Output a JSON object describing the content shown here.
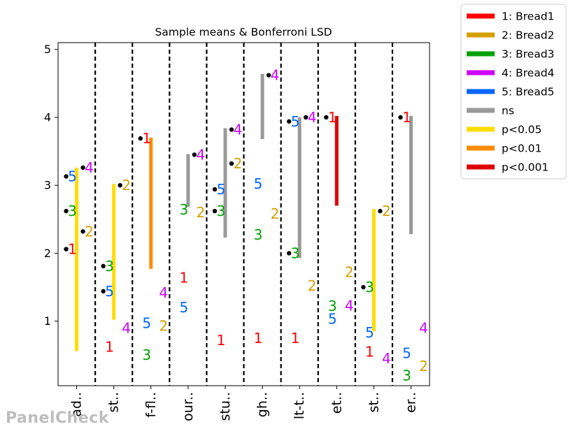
{
  "watermark": "PanelCheck",
  "chart_data": {
    "type": "scatter",
    "title": "Sample means & Bonferroni LSD",
    "ylim": [
      0.05,
      5.1
    ],
    "yticks": [
      "1",
      "2",
      "3",
      "4",
      "5"
    ],
    "categories": [
      "ad..",
      "st..",
      "f-fl..",
      "our..",
      "stu..",
      "gh..",
      "lt-t..",
      "et..",
      "st..",
      "er.."
    ],
    "grid": false,
    "legend_position": "outside-top-right",
    "colors": {
      "1": "#ff0000",
      "2": "#d4a000",
      "3": "#00a000",
      "4": "#cc00ff",
      "5": "#0066ff",
      "ns": "#999999",
      "p<0.05": "#ffdd00",
      "p<0.01": "#ff8c00",
      "p<0.001": "#dd0000"
    },
    "legend": [
      {
        "key": "1",
        "label": "1: Bread1"
      },
      {
        "key": "2",
        "label": "2: Bread2"
      },
      {
        "key": "3",
        "label": "3: Bread3"
      },
      {
        "key": "4",
        "label": "4: Bread4"
      },
      {
        "key": "5",
        "label": "5: Bread5"
      },
      {
        "key": "ns",
        "label": "ns"
      },
      {
        "key": "p<0.05",
        "label": "p<0.05"
      },
      {
        "key": "p<0.01",
        "label": "p<0.01"
      },
      {
        "key": "p<0.001",
        "label": "p<0.001"
      }
    ],
    "groups": [
      {
        "means": {
          "1": 2.06,
          "2": 2.32,
          "3": 2.62,
          "4": 3.26,
          "5": 3.13
        },
        "dots": [
          "1",
          "2",
          "3",
          "4",
          "5"
        ],
        "bar": {
          "sig": "p<0.05",
          "y1": 0.56,
          "y2": 3.26
        }
      },
      {
        "means": {
          "1": 0.62,
          "2": 3.0,
          "3": 1.81,
          "4": 0.9,
          "5": 1.44
        },
        "dots": [
          "2",
          "3",
          "5"
        ],
        "bar": {
          "sig": "p<0.05",
          "y1": 1.02,
          "y2": 3.02
        }
      },
      {
        "means": {
          "1": 3.69,
          "2": 0.93,
          "3": 0.5,
          "4": 1.42,
          "5": 0.97
        },
        "dots": [
          "1"
        ],
        "bar": {
          "sig": "p<0.01",
          "y1": 1.77,
          "y2": 3.7
        }
      },
      {
        "means": {
          "1": 1.64,
          "2": 2.6,
          "3": 2.64,
          "4": 3.45,
          "5": 1.2
        },
        "dots": [
          "4"
        ],
        "bar": {
          "sig": "ns",
          "y1": 2.68,
          "y2": 3.46
        }
      },
      {
        "means": {
          "1": 0.72,
          "2": 3.32,
          "3": 2.62,
          "4": 3.82,
          "5": 2.94
        },
        "dots": [
          "2",
          "3",
          "4",
          "5"
        ],
        "bar": {
          "sig": "ns",
          "y1": 2.23,
          "y2": 3.84
        }
      },
      {
        "means": {
          "1": 0.75,
          "2": 2.58,
          "3": 2.27,
          "4": 4.62,
          "5": 3.02
        },
        "dots": [
          "4"
        ],
        "bar": {
          "sig": "ns",
          "y1": 3.68,
          "y2": 4.64
        }
      },
      {
        "means": {
          "1": 0.75,
          "2": 1.52,
          "3": 2.0,
          "4": 4.0,
          "5": 3.94
        },
        "dots": [
          "3",
          "4",
          "5"
        ],
        "bar": {
          "sig": "ns",
          "y1": 1.93,
          "y2": 4.0
        }
      },
      {
        "means": {
          "1": 4.0,
          "2": 1.72,
          "3": 1.22,
          "4": 1.23,
          "5": 1.03
        },
        "dots": [
          "1"
        ],
        "bar": {
          "sig": "p<0.001",
          "y1": 2.7,
          "y2": 4.02
        }
      },
      {
        "means": {
          "1": 0.55,
          "2": 2.62,
          "3": 1.5,
          "4": 0.45,
          "5": 0.83
        },
        "dots": [
          "2",
          "3"
        ],
        "bar": {
          "sig": "p<0.05",
          "y1": 0.85,
          "y2": 2.65
        }
      },
      {
        "means": {
          "1": 4.0,
          "2": 0.34,
          "3": 0.2,
          "4": 0.9,
          "5": 0.53
        },
        "dots": [
          "1"
        ],
        "bar": {
          "sig": "ns",
          "y1": 2.28,
          "y2": 4.02
        }
      }
    ]
  }
}
